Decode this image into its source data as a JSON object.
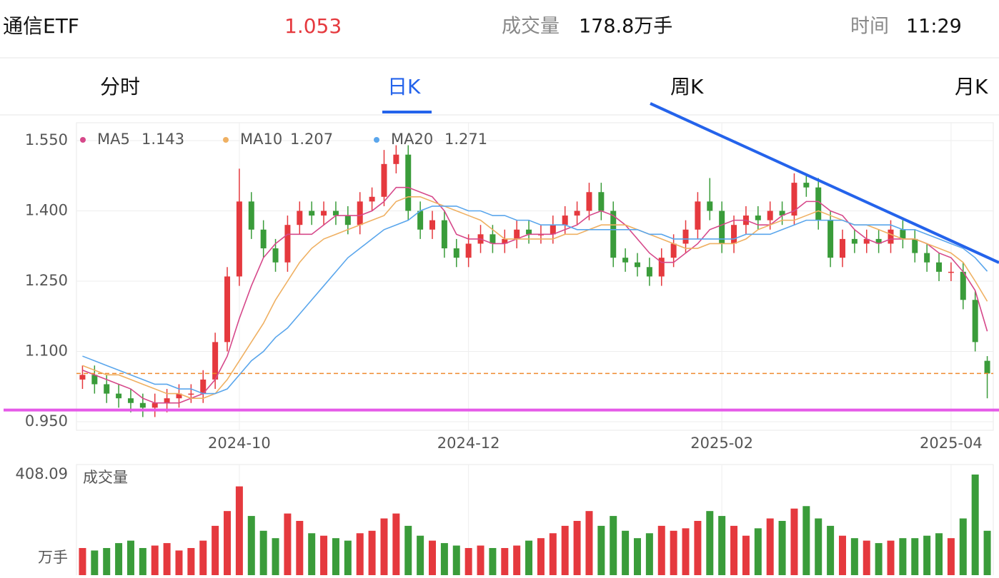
{
  "header": {
    "name": "通信ETF",
    "price": 1.053,
    "volume_label": "成交量",
    "volume": "178.8万手",
    "time_label": "时间",
    "time": "11:29"
  },
  "tabs": [
    "分时",
    "日K",
    "周K",
    "月K"
  ],
  "active_tab": 1,
  "chart_data": {
    "type": "candlestick",
    "categories": [
      null,
      null,
      null,
      null,
      null,
      null,
      null,
      null,
      null,
      null,
      null,
      null,
      null,
      "2024-10",
      null,
      null,
      null,
      null,
      null,
      null,
      null,
      null,
      null,
      null,
      null,
      null,
      null,
      null,
      null,
      null,
      null,
      null,
      "2024-12",
      null,
      null,
      null,
      null,
      null,
      null,
      null,
      null,
      null,
      null,
      null,
      null,
      null,
      null,
      null,
      null,
      null,
      null,
      null,
      null,
      "2025-02",
      null,
      null,
      null,
      null,
      null,
      null,
      null,
      null,
      null,
      null,
      null,
      null,
      null,
      null,
      null,
      null,
      null,
      null,
      "2025-04",
      null,
      null,
      null
    ],
    "open": [
      1.04,
      1.05,
      1.03,
      1.01,
      1.0,
      0.99,
      0.98,
      0.99,
      1.0,
      1.01,
      1.01,
      1.04,
      1.12,
      1.26,
      1.42,
      1.36,
      1.32,
      1.29,
      1.37,
      1.4,
      1.39,
      1.4,
      1.39,
      1.37,
      1.42,
      1.43,
      1.5,
      1.52,
      1.4,
      1.36,
      1.38,
      1.32,
      1.3,
      1.33,
      1.35,
      1.33,
      1.34,
      1.36,
      1.35,
      1.35,
      1.37,
      1.39,
      1.4,
      1.44,
      1.4,
      1.3,
      1.29,
      1.28,
      1.26,
      1.3,
      1.33,
      1.36,
      1.42,
      1.4,
      1.33,
      1.37,
      1.39,
      1.38,
      1.4,
      1.39,
      1.46,
      1.45,
      1.38,
      1.3,
      1.34,
      1.33,
      1.34,
      1.33,
      1.36,
      1.34,
      1.31,
      1.29,
      1.27,
      1.27,
      1.21,
      1.08
    ],
    "high": [
      1.07,
      1.07,
      1.05,
      1.03,
      1.02,
      1.01,
      1.01,
      1.02,
      1.03,
      1.03,
      1.06,
      1.14,
      1.28,
      1.49,
      1.44,
      1.38,
      1.34,
      1.39,
      1.42,
      1.42,
      1.42,
      1.42,
      1.41,
      1.44,
      1.45,
      1.53,
      1.54,
      1.54,
      1.42,
      1.4,
      1.4,
      1.34,
      1.35,
      1.37,
      1.37,
      1.36,
      1.38,
      1.38,
      1.37,
      1.39,
      1.41,
      1.42,
      1.46,
      1.46,
      1.42,
      1.32,
      1.31,
      1.3,
      1.32,
      1.35,
      1.38,
      1.44,
      1.47,
      1.42,
      1.39,
      1.41,
      1.41,
      1.42,
      1.42,
      1.48,
      1.48,
      1.47,
      1.4,
      1.36,
      1.36,
      1.36,
      1.36,
      1.38,
      1.38,
      1.36,
      1.33,
      1.31,
      1.29,
      1.29,
      1.23,
      1.09
    ],
    "low": [
      1.02,
      1.01,
      0.99,
      0.98,
      0.97,
      0.96,
      0.96,
      0.97,
      0.98,
      0.99,
      0.99,
      1.02,
      1.1,
      1.24,
      1.34,
      1.3,
      1.27,
      1.27,
      1.35,
      1.37,
      1.37,
      1.37,
      1.35,
      1.35,
      1.4,
      1.41,
      1.48,
      1.38,
      1.34,
      1.34,
      1.3,
      1.28,
      1.28,
      1.31,
      1.31,
      1.31,
      1.32,
      1.33,
      1.33,
      1.33,
      1.35,
      1.37,
      1.38,
      1.38,
      1.28,
      1.27,
      1.26,
      1.24,
      1.24,
      1.28,
      1.31,
      1.34,
      1.38,
      1.31,
      1.31,
      1.35,
      1.36,
      1.36,
      1.37,
      1.37,
      1.43,
      1.36,
      1.28,
      1.28,
      1.31,
      1.31,
      1.31,
      1.31,
      1.32,
      1.29,
      1.27,
      1.25,
      1.25,
      1.19,
      1.1,
      1.0
    ],
    "close": [
      1.05,
      1.03,
      1.01,
      1.0,
      0.99,
      0.98,
      0.99,
      1.0,
      1.01,
      1.01,
      1.04,
      1.12,
      1.26,
      1.42,
      1.36,
      1.32,
      1.29,
      1.37,
      1.4,
      1.39,
      1.4,
      1.39,
      1.37,
      1.42,
      1.43,
      1.5,
      1.52,
      1.4,
      1.36,
      1.38,
      1.32,
      1.3,
      1.33,
      1.35,
      1.33,
      1.34,
      1.36,
      1.35,
      1.35,
      1.37,
      1.39,
      1.4,
      1.44,
      1.4,
      1.3,
      1.29,
      1.28,
      1.26,
      1.3,
      1.33,
      1.36,
      1.42,
      1.4,
      1.33,
      1.37,
      1.39,
      1.38,
      1.4,
      1.39,
      1.46,
      1.45,
      1.38,
      1.3,
      1.34,
      1.33,
      1.34,
      1.33,
      1.36,
      1.34,
      1.31,
      1.29,
      1.27,
      1.27,
      1.21,
      1.12,
      1.053
    ],
    "up_color": "#e5393e",
    "down_color": "#3a9c3a",
    "ma": [
      {
        "name": "MA5",
        "color": "#d6488a",
        "last": 1.143,
        "values": [
          1.06,
          1.05,
          1.04,
          1.03,
          1.02,
          1.0,
          0.99,
          0.99,
          0.99,
          1.0,
          1.01,
          1.04,
          1.09,
          1.17,
          1.24,
          1.3,
          1.33,
          1.35,
          1.35,
          1.35,
          1.37,
          1.39,
          1.39,
          1.39,
          1.4,
          1.42,
          1.45,
          1.45,
          1.44,
          1.43,
          1.4,
          1.35,
          1.34,
          1.34,
          1.33,
          1.33,
          1.34,
          1.35,
          1.35,
          1.35,
          1.36,
          1.37,
          1.39,
          1.4,
          1.39,
          1.37,
          1.34,
          1.31,
          1.29,
          1.29,
          1.31,
          1.33,
          1.36,
          1.37,
          1.38,
          1.38,
          1.37,
          1.37,
          1.39,
          1.4,
          1.42,
          1.42,
          1.4,
          1.39,
          1.36,
          1.34,
          1.33,
          1.34,
          1.34,
          1.34,
          1.33,
          1.31,
          1.3,
          1.27,
          1.23,
          1.143
        ]
      },
      {
        "name": "MA10",
        "color": "#efb062",
        "last": 1.207,
        "values": [
          1.07,
          1.06,
          1.05,
          1.05,
          1.04,
          1.03,
          1.02,
          1.01,
          1.01,
          1.0,
          1.0,
          1.01,
          1.04,
          1.08,
          1.12,
          1.16,
          1.21,
          1.25,
          1.29,
          1.32,
          1.34,
          1.35,
          1.36,
          1.37,
          1.38,
          1.39,
          1.42,
          1.43,
          1.43,
          1.42,
          1.41,
          1.4,
          1.39,
          1.38,
          1.36,
          1.34,
          1.34,
          1.34,
          1.34,
          1.34,
          1.35,
          1.35,
          1.36,
          1.37,
          1.37,
          1.37,
          1.36,
          1.35,
          1.34,
          1.33,
          1.32,
          1.32,
          1.33,
          1.33,
          1.33,
          1.34,
          1.36,
          1.37,
          1.38,
          1.38,
          1.39,
          1.4,
          1.39,
          1.38,
          1.37,
          1.37,
          1.36,
          1.35,
          1.34,
          1.34,
          1.33,
          1.32,
          1.31,
          1.29,
          1.25,
          1.207
        ]
      },
      {
        "name": "MA20",
        "color": "#5aa6ec",
        "last": 1.271,
        "values": [
          1.09,
          1.08,
          1.07,
          1.06,
          1.05,
          1.04,
          1.03,
          1.03,
          1.02,
          1.02,
          1.01,
          1.01,
          1.02,
          1.05,
          1.08,
          1.1,
          1.13,
          1.15,
          1.18,
          1.21,
          1.24,
          1.27,
          1.3,
          1.32,
          1.34,
          1.36,
          1.37,
          1.38,
          1.4,
          1.41,
          1.41,
          1.41,
          1.4,
          1.4,
          1.39,
          1.39,
          1.38,
          1.38,
          1.37,
          1.37,
          1.37,
          1.36,
          1.36,
          1.36,
          1.36,
          1.36,
          1.36,
          1.35,
          1.35,
          1.34,
          1.34,
          1.34,
          1.34,
          1.34,
          1.34,
          1.35,
          1.35,
          1.35,
          1.36,
          1.37,
          1.38,
          1.38,
          1.38,
          1.38,
          1.37,
          1.37,
          1.37,
          1.37,
          1.36,
          1.36,
          1.35,
          1.34,
          1.33,
          1.32,
          1.3,
          1.271
        ]
      }
    ],
    "ylim": [
      0.95,
      1.55
    ],
    "yticks": [
      {
        "value": 1.55,
        "label": "1.550"
      },
      {
        "value": 1.4,
        "label": "1.400"
      },
      {
        "value": 1.25,
        "label": "1.250"
      },
      {
        "value": 1.1,
        "label": "1.100"
      },
      {
        "value": 0.95,
        "label": "0.950"
      }
    ],
    "grid": true,
    "price_line": 1.053,
    "support_line": 0.975,
    "support_color": "#e55ae8",
    "trend_color": "#2463eb",
    "volume_title": "成交量",
    "volume_unit": "万手",
    "volume_ylim": [
      0,
      408.09
    ],
    "volume_yticks": [
      408.09
    ],
    "volume": [
      110,
      100,
      110,
      130,
      140,
      110,
      120,
      130,
      100,
      110,
      140,
      200,
      260,
      360,
      240,
      180,
      150,
      250,
      220,
      170,
      160,
      150,
      140,
      170,
      180,
      230,
      250,
      200,
      160,
      140,
      130,
      120,
      110,
      120,
      110,
      110,
      120,
      140,
      150,
      170,
      200,
      220,
      260,
      200,
      240,
      180,
      150,
      170,
      200,
      180,
      190,
      220,
      260,
      240,
      200,
      160,
      190,
      230,
      220,
      270,
      280,
      230,
      200,
      160,
      150,
      140,
      130,
      140,
      150,
      150,
      160,
      170,
      150,
      230,
      408.09,
      180
    ]
  }
}
